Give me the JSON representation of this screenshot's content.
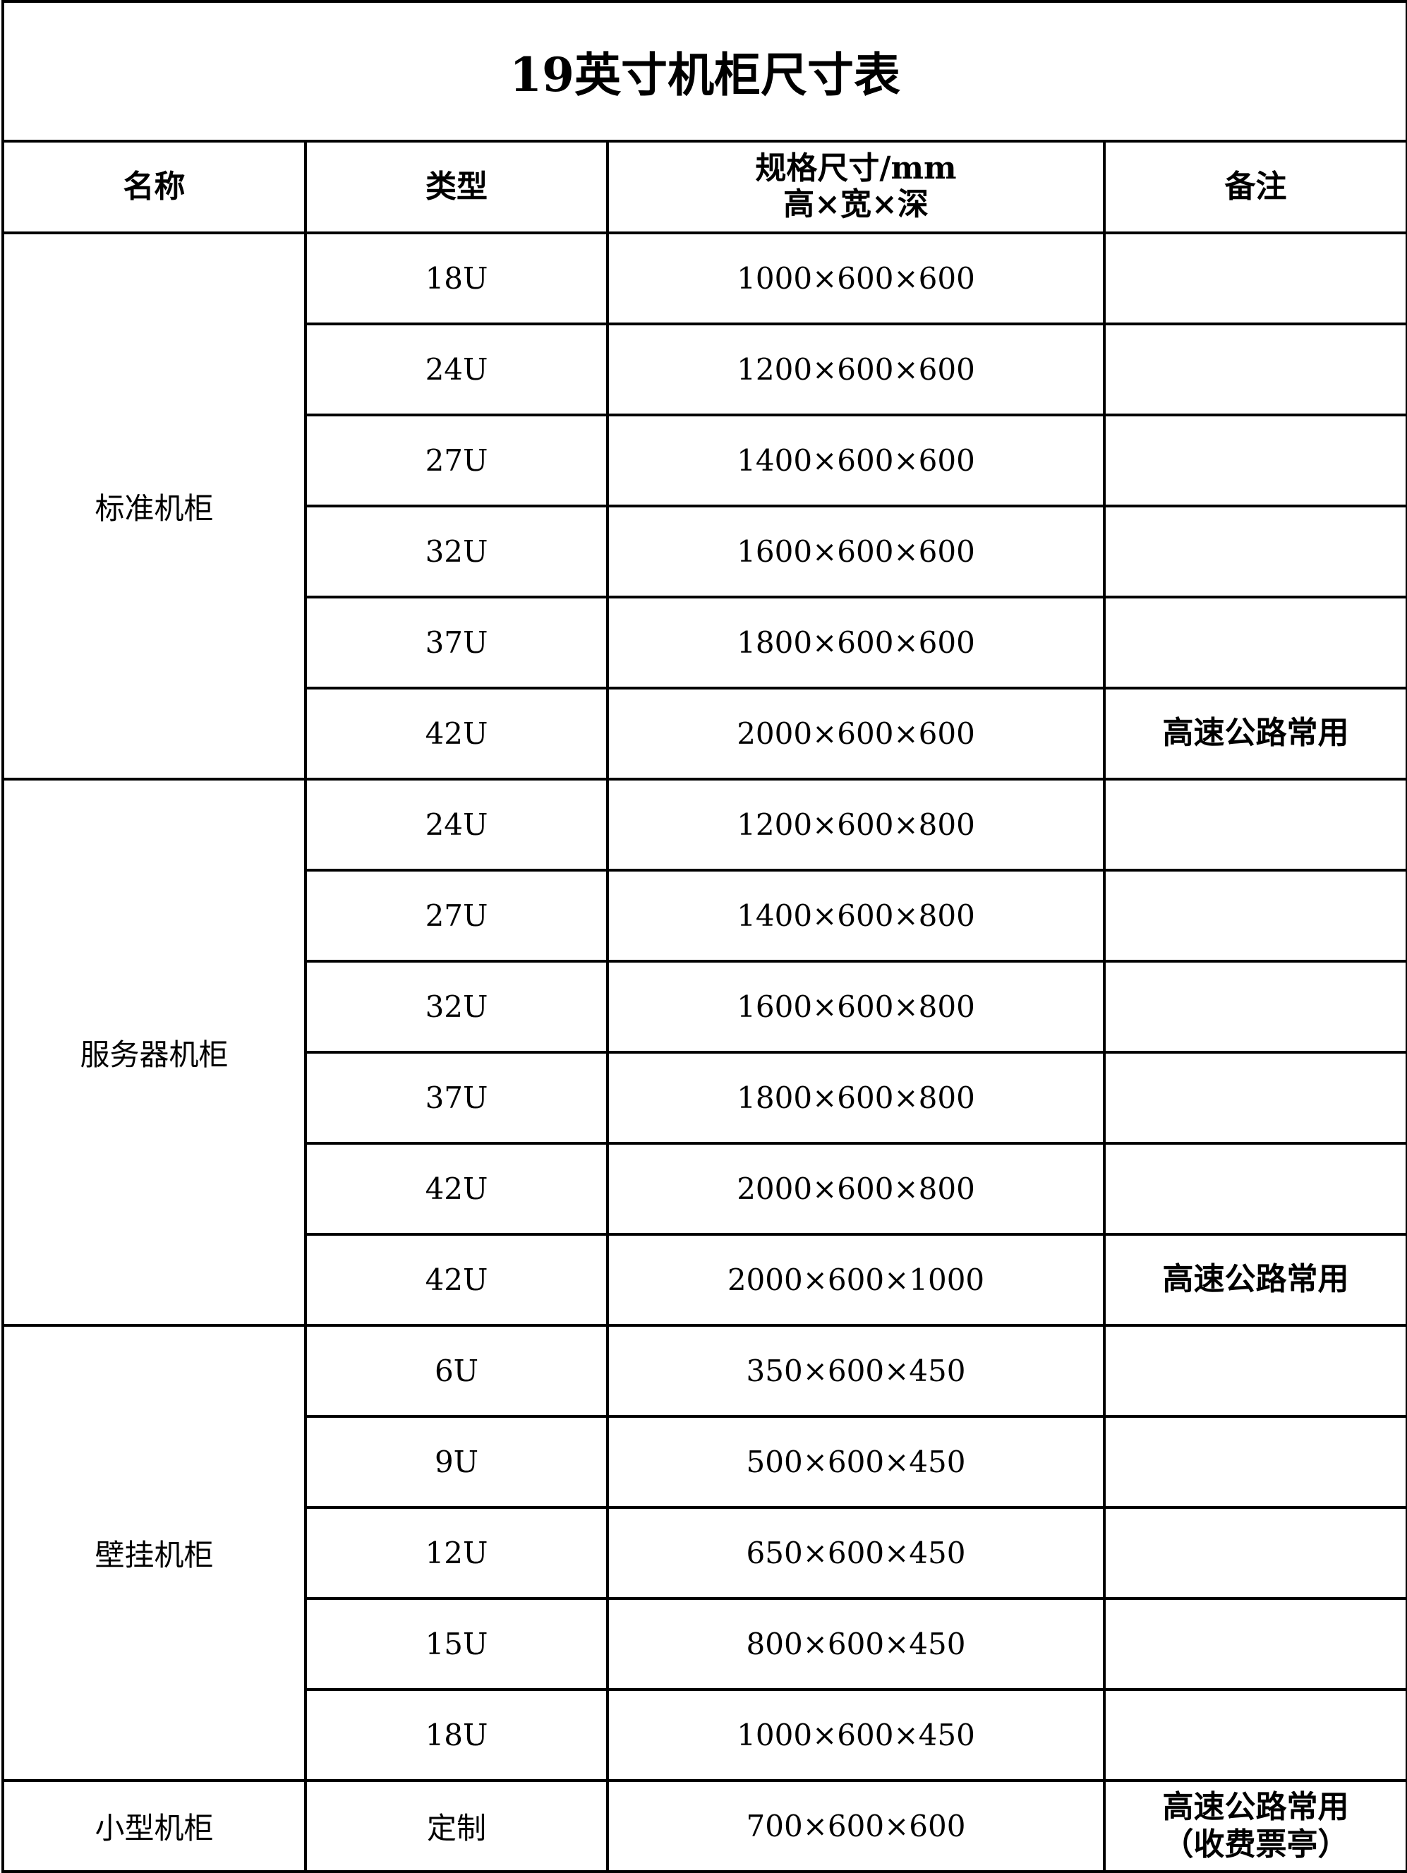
{
  "title": "19英寸机柜尺寸表",
  "headers": {
    "name": "名称",
    "type": "类型",
    "spec_line1": "规格尺寸/mm",
    "spec_line2": "高×宽×深",
    "note": "备注"
  },
  "groups": [
    {
      "name": "标准机柜",
      "rows": [
        {
          "type": "18U",
          "spec": "1000×600×600",
          "note": ""
        },
        {
          "type": "24U",
          "spec": "1200×600×600",
          "note": ""
        },
        {
          "type": "27U",
          "spec": "1400×600×600",
          "note": ""
        },
        {
          "type": "32U",
          "spec": "1600×600×600",
          "note": ""
        },
        {
          "type": "37U",
          "spec": "1800×600×600",
          "note": ""
        },
        {
          "type": "42U",
          "spec": "2000×600×600",
          "note": "高速公路常用"
        }
      ]
    },
    {
      "name": "服务器机柜",
      "rows": [
        {
          "type": "24U",
          "spec": "1200×600×800",
          "note": ""
        },
        {
          "type": "27U",
          "spec": "1400×600×800",
          "note": ""
        },
        {
          "type": "32U",
          "spec": "1600×600×800",
          "note": ""
        },
        {
          "type": "37U",
          "spec": "1800×600×800",
          "note": ""
        },
        {
          "type": "42U",
          "spec": "2000×600×800",
          "note": ""
        },
        {
          "type": "42U",
          "spec": "2000×600×1000",
          "note": "高速公路常用"
        }
      ]
    },
    {
      "name": "壁挂机柜",
      "rows": [
        {
          "type": "6U",
          "spec": "350×600×450",
          "note": ""
        },
        {
          "type": "9U",
          "spec": "500×600×450",
          "note": ""
        },
        {
          "type": "12U",
          "spec": "650×600×450",
          "note": ""
        },
        {
          "type": "15U",
          "spec": "800×600×450",
          "note": ""
        },
        {
          "type": "18U",
          "spec": "1000×600×450",
          "note": ""
        }
      ]
    },
    {
      "name": "小型机柜",
      "rows": [
        {
          "type": "定制",
          "spec": "700×600×600",
          "note": "高速公路常用",
          "note_line2": "（收费票亭）"
        }
      ]
    }
  ]
}
